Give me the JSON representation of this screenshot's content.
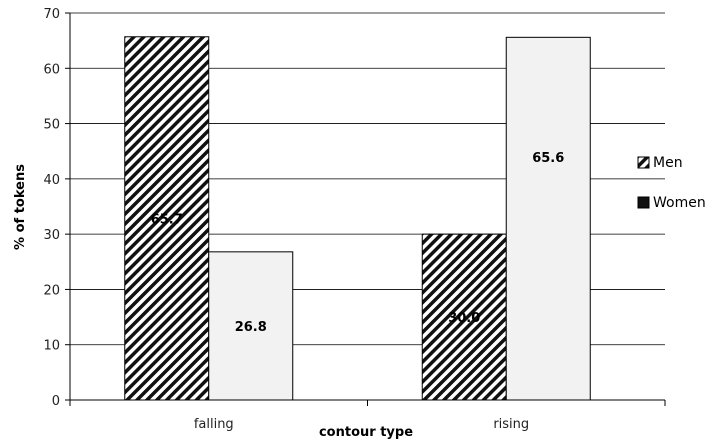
{
  "chart_data": {
    "type": "bar",
    "title": "",
    "xlabel": "contour type",
    "ylabel": "% of tokens",
    "categories": [
      "falling",
      "rising"
    ],
    "ylim": [
      0,
      70
    ],
    "yticks": [
      0,
      10,
      20,
      30,
      40,
      50,
      60,
      70
    ],
    "grid": true,
    "legend_position": "right",
    "series": [
      {
        "name": "Men",
        "values": [
          65.7,
          30.0
        ],
        "labels": [
          "65.7",
          "30.0"
        ],
        "pattern": "diagonal-hatch",
        "color": "#222222"
      },
      {
        "name": "Women",
        "values": [
          26.8,
          65.6
        ],
        "labels": [
          "26.8",
          "65.6"
        ],
        "pattern": "solid",
        "color": "#f2f2f2"
      }
    ]
  }
}
